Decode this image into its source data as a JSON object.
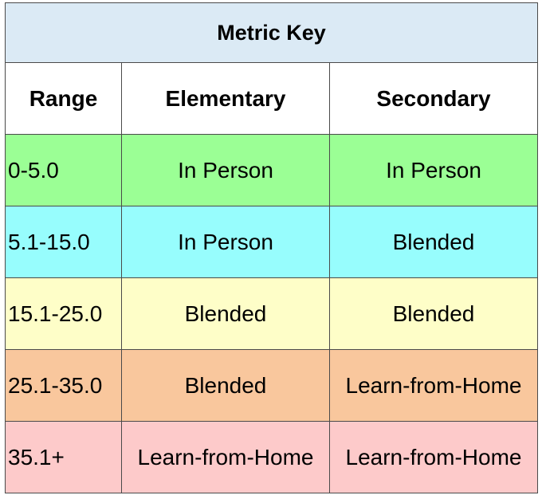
{
  "title": "Metric Key",
  "title_bg": "#dbeaf5",
  "headers": [
    "Range",
    "Elementary",
    "Secondary"
  ],
  "rows": [
    {
      "range": "0-5.0",
      "elementary": "In Person",
      "secondary": "In Person",
      "color": "#9bff95"
    },
    {
      "range": "5.1-15.0",
      "elementary": "In Person",
      "secondary": "Blended",
      "color": "#97fdfd"
    },
    {
      "range": "15.1-25.0",
      "elementary": "Blended",
      "secondary": "Blended",
      "color": "#fefec8"
    },
    {
      "range": "25.1-35.0",
      "elementary": "Blended",
      "secondary": "Learn-from-Home",
      "color": "#f9c79d"
    },
    {
      "range": "35.1+",
      "elementary": "Learn-from-Home",
      "secondary": "Learn-from-Home",
      "color": "#fdcaca"
    }
  ]
}
